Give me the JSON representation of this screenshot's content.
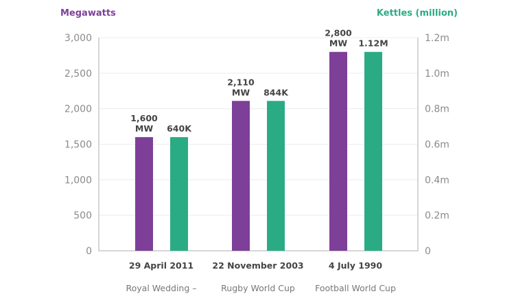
{
  "chart_data": {
    "type": "bar",
    "categories": [
      "29 April 2011",
      "22 November 2003",
      "4 July 1990"
    ],
    "subcategories": [
      "Royal Wedding –",
      "Rugby World Cup",
      "Football World Cup"
    ],
    "left_axis": {
      "title": "Megawatts",
      "ylim": [
        0,
        3000
      ],
      "ticks": [
        "0",
        "500",
        "1,000",
        "1,500",
        "2,000",
        "2,500",
        "3,000"
      ],
      "tick_values": [
        0,
        500,
        1000,
        1500,
        2000,
        2500,
        3000
      ]
    },
    "right_axis": {
      "title": "Kettles (million)",
      "ylim": [
        0,
        1.2
      ],
      "ticks": [
        "0",
        "0.2m",
        "0.4m",
        "0.6m",
        "0.8m",
        "1.0m",
        "1.2m"
      ],
      "tick_values": [
        0,
        0.2,
        0.4,
        0.6,
        0.8,
        1.0,
        1.2
      ]
    },
    "series": [
      {
        "name": "Megawatts",
        "axis": "left",
        "color": "#7d3f98",
        "values": [
          1600,
          2110,
          2800
        ],
        "labels": [
          [
            "1,600",
            "MW"
          ],
          [
            "2,110",
            "MW"
          ],
          [
            "2,800",
            "MW"
          ]
        ]
      },
      {
        "name": "Kettles (million)",
        "axis": "right",
        "color": "#2bab84",
        "values": [
          0.64,
          0.844,
          1.12
        ],
        "labels": [
          [
            "640K"
          ],
          [
            "844K"
          ],
          [
            "1.12M"
          ]
        ]
      }
    ],
    "grid": true
  }
}
